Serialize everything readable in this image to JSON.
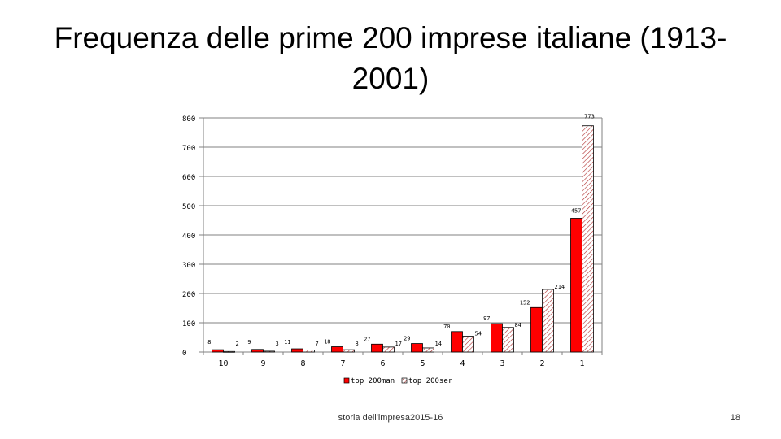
{
  "slide": {
    "title_line1": "Frequenza delle prime 200 imprese italiane (1913-",
    "title_line2": "2001)",
    "footer": "storia dell'impresa2015-16",
    "page_number": "18"
  },
  "chart_data": {
    "type": "bar",
    "categories": [
      "10",
      "9",
      "8",
      "7",
      "6",
      "5",
      "4",
      "3",
      "2",
      "1"
    ],
    "series": [
      {
        "name": "top 200man",
        "values": [
          8,
          9,
          11,
          18,
          27,
          29,
          70,
          97,
          152,
          457
        ],
        "labels": [
          "8",
          "9",
          "11",
          "18",
          "27",
          "29",
          "70",
          "97",
          "152",
          "457"
        ],
        "color": "#ff0000",
        "pattern": "solid"
      },
      {
        "name": "top 200ser",
        "values": [
          2,
          3,
          7,
          8,
          17,
          14,
          54,
          84,
          214,
          773
        ],
        "labels": [
          "2",
          "3",
          "7",
          "8",
          "17",
          "14",
          "54",
          "84",
          "214",
          "773"
        ],
        "color": "#c00000",
        "pattern": "hatched"
      }
    ],
    "yticks": [
      "0",
      "100",
      "200",
      "300",
      "400",
      "500",
      "600",
      "700",
      "800"
    ],
    "ylim": [
      0,
      800
    ],
    "grid": true,
    "legend_position": "bottom"
  }
}
